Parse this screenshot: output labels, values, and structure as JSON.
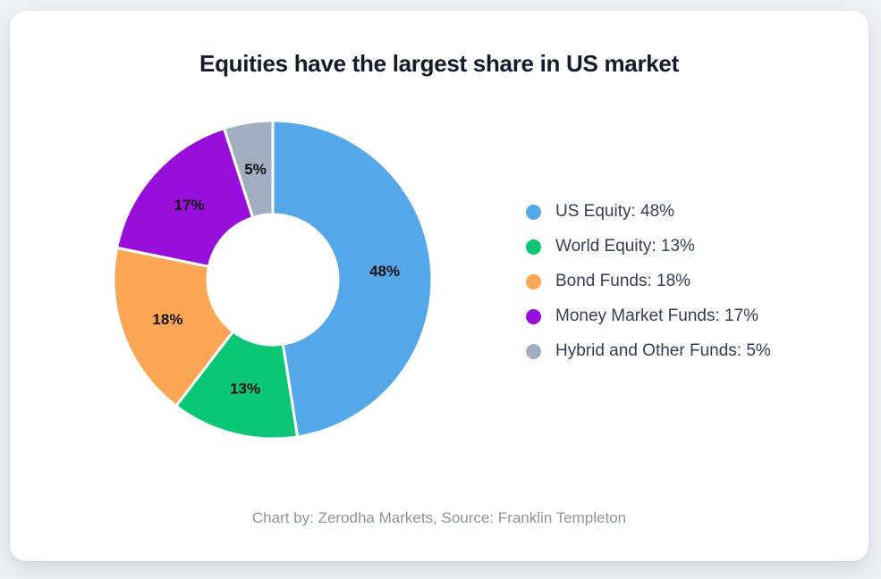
{
  "header": {
    "title": "Equities have the largest share in US market"
  },
  "footer": {
    "credit": "Chart by: Zerodha Markets, Source: Franklin Templeton"
  },
  "theme": {
    "page_background": "#eff1f4",
    "card_background": "#ffffff",
    "title_color": "#141b2d",
    "legend_text_color": "#323e55",
    "slice_label_color": "#101010",
    "credit_color": "#8b94a3",
    "slice_gap_color": "#ffffff"
  },
  "chart_data": {
    "type": "pie",
    "variant": "donut",
    "title": "Equities have the largest share in US market",
    "categories": [
      "US Equity",
      "World Equity",
      "Bond Funds",
      "Money Market Funds",
      "Hybrid and Other Funds"
    ],
    "values": [
      48,
      13,
      18,
      17,
      5
    ],
    "unit": "%",
    "colors": [
      "#54a7e9",
      "#0bc674",
      "#fba655",
      "#980edb",
      "#a2adc0"
    ],
    "slice_labels": [
      "48%",
      "13%",
      "18%",
      "17%",
      "5%"
    ],
    "legend_position": "right",
    "legend": [
      {
        "label": "US Equity: 48%",
        "color": "#54a7e9"
      },
      {
        "label": "World Equity: 13%",
        "color": "#0bc674"
      },
      {
        "label": "Bond Funds: 18%",
        "color": "#fba655"
      },
      {
        "label": "Money Market Funds: 17%",
        "color": "#980edb"
      },
      {
        "label": "Hybrid and Other Funds: 5%",
        "color": "#a2adc0"
      }
    ],
    "start_angle_deg": 0,
    "direction": "clockwise",
    "inner_radius_ratio": 0.41,
    "gap_stroke_width": 3,
    "credit": "Chart by: Zerodha Markets, Source: Franklin Templeton"
  }
}
